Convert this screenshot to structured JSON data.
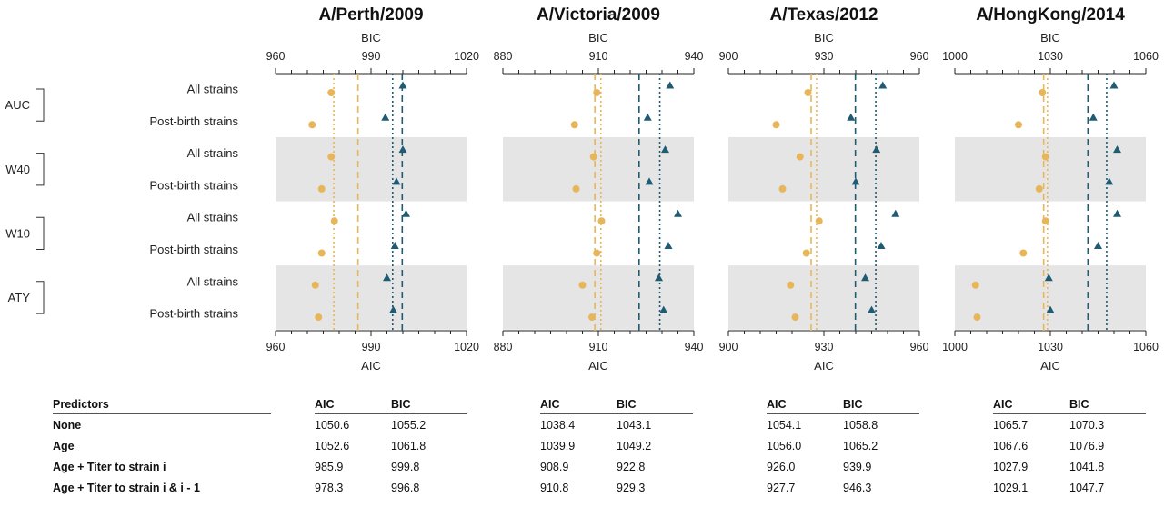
{
  "chart_data": [
    {
      "type": "dot-plot",
      "title": "A/Perth/2009",
      "top_axis_label": "BIC",
      "bottom_axis_label": "AIC",
      "range": [
        960,
        1020
      ],
      "ticks": [
        960,
        990,
        1020
      ],
      "rows": [
        "All strains",
        "Post-birth strains",
        "All strains",
        "Post-birth strains",
        "All strains",
        "Post-birth strains",
        "All strains",
        "Post-birth strains"
      ],
      "groups": [
        "AUC",
        "W40",
        "W10",
        "ATY"
      ],
      "aic_points": [
        977.5,
        971.5,
        977.5,
        974.5,
        978.5,
        974.5,
        972.5,
        973.5
      ],
      "bic_points": [
        1000,
        994.5,
        1000,
        998,
        1001,
        997.5,
        995,
        997
      ],
      "aic_ref_lines": {
        "dashed": 985.9,
        "dotted": 978.3
      },
      "bic_ref_lines": {
        "dashed": 999.8,
        "dotted": 996.8
      }
    },
    {
      "type": "dot-plot",
      "title": "A/Victoria/2009",
      "top_axis_label": "BIC",
      "bottom_axis_label": "AIC",
      "range": [
        880,
        940
      ],
      "ticks": [
        880,
        910,
        940
      ],
      "rows": [
        "All strains",
        "Post-birth strains",
        "All strains",
        "Post-birth strains",
        "All strains",
        "Post-birth strains",
        "All strains",
        "Post-birth strains"
      ],
      "groups": [
        "AUC",
        "W40",
        "W10",
        "ATY"
      ],
      "aic_points": [
        909.5,
        902.5,
        908.5,
        903,
        911,
        909.5,
        905,
        908
      ],
      "bic_points": [
        932.5,
        925.5,
        931,
        926,
        935,
        932,
        929,
        930.5
      ],
      "aic_ref_lines": {
        "dashed": 908.9,
        "dotted": 910.8
      },
      "bic_ref_lines": {
        "dashed": 922.8,
        "dotted": 929.3
      }
    },
    {
      "type": "dot-plot",
      "title": "A/Texas/2012",
      "top_axis_label": "BIC",
      "bottom_axis_label": "AIC",
      "range": [
        900,
        960
      ],
      "ticks": [
        900,
        930,
        960
      ],
      "rows": [
        "All strains",
        "Post-birth strains",
        "All strains",
        "Post-birth strains",
        "All strains",
        "Post-birth strains",
        "All strains",
        "Post-birth strains"
      ],
      "groups": [
        "AUC",
        "W40",
        "W10",
        "ATY"
      ],
      "aic_points": [
        925,
        915,
        922.5,
        917,
        928.5,
        924.5,
        919.5,
        921
      ],
      "bic_points": [
        948.5,
        938.5,
        946.5,
        940,
        952.5,
        948,
        943,
        945
      ],
      "aic_ref_lines": {
        "dashed": 926.0,
        "dotted": 927.7
      },
      "bic_ref_lines": {
        "dashed": 939.9,
        "dotted": 946.3
      }
    },
    {
      "type": "dot-plot",
      "title": "A/HongKong/2014",
      "top_axis_label": "BIC",
      "bottom_axis_label": "AIC",
      "range": [
        1000,
        1060
      ],
      "ticks": [
        1000,
        1030,
        1060
      ],
      "rows": [
        "All strains",
        "Post-birth strains",
        "All strains",
        "Post-birth strains",
        "All strains",
        "Post-birth strains",
        "All strains",
        "Post-birth strains"
      ],
      "groups": [
        "AUC",
        "W40",
        "W10",
        "ATY"
      ],
      "aic_points": [
        1027.5,
        1020,
        1028.5,
        1026.5,
        1028.5,
        1021.5,
        1006.5,
        1007
      ],
      "bic_points": [
        1050,
        1043.5,
        1051,
        1048.5,
        1051,
        1045,
        1029.5,
        1030
      ],
      "aic_ref_lines": {
        "dashed": 1027.9,
        "dotted": 1029.1
      },
      "bic_ref_lines": {
        "dashed": 1041.8,
        "dotted": 1047.7
      }
    }
  ],
  "colors": {
    "aic": "#e8b65a",
    "bic": "#1f5b73",
    "band": "#e5e5e5",
    "axis": "#222222"
  },
  "table": {
    "predictor_header": "Predictors",
    "predictors": [
      "None",
      "Age",
      "Age + Titer to strain i",
      "Age + Titer to strain i & i - 1"
    ],
    "panels": [
      {
        "aic_header": "AIC",
        "bic_header": "BIC",
        "rows": [
          [
            "1050.6",
            "1055.2"
          ],
          [
            "1052.6",
            "1061.8"
          ],
          [
            "985.9",
            "999.8"
          ],
          [
            "978.3",
            "996.8"
          ]
        ]
      },
      {
        "aic_header": "AIC",
        "bic_header": "BIC",
        "rows": [
          [
            "1038.4",
            "1043.1"
          ],
          [
            "1039.9",
            "1049.2"
          ],
          [
            "908.9",
            "922.8"
          ],
          [
            "910.8",
            "929.3"
          ]
        ]
      },
      {
        "aic_header": "AIC",
        "bic_header": "BIC",
        "rows": [
          [
            "1054.1",
            "1058.8"
          ],
          [
            "1056.0",
            "1065.2"
          ],
          [
            "926.0",
            "939.9"
          ],
          [
            "927.7",
            "946.3"
          ]
        ]
      },
      {
        "aic_header": "AIC",
        "bic_header": "BIC",
        "rows": [
          [
            "1065.7",
            "1070.3"
          ],
          [
            "1067.6",
            "1076.9"
          ],
          [
            "1027.9",
            "1041.8"
          ],
          [
            "1029.1",
            "1047.7"
          ]
        ]
      }
    ]
  }
}
